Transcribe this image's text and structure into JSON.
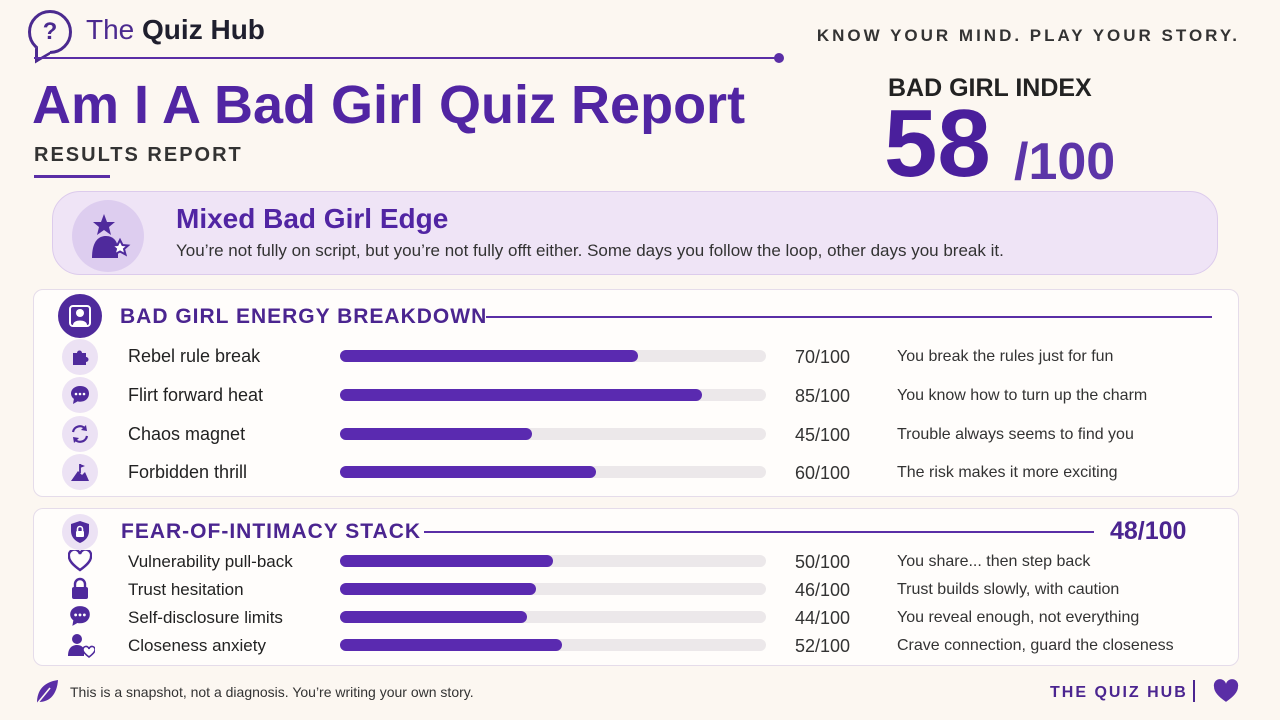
{
  "header": {
    "logo_glyph": "?",
    "brand_prefix": "The",
    "brand_name": "Quiz Hub",
    "tagline": "KNOW YOUR MIND. PLAY YOUR STORY.",
    "title": "Am I A Bad Girl Quiz Report",
    "subtitle": "RESULTS REPORT"
  },
  "index": {
    "label": "BAD GIRL INDEX",
    "value": "58",
    "max": "/100"
  },
  "banner": {
    "icon": "star-person-icon",
    "title": "Mixed Bad Girl Edge",
    "text": "You’re not fully on script, but you’re not fully offt either. Some days you follow the loop, other days you break it."
  },
  "breakdown": {
    "title": "BAD GIRL ENERGY BREAKDOWN",
    "icon": "person-icon",
    "items": [
      {
        "label": "Rebel rule break",
        "value": 70,
        "score": "70/100",
        "desc": "You break the rules just for fun",
        "icon": "puzzle-icon"
      },
      {
        "label": "Flirt forward heat",
        "value": 85,
        "score": "85/100",
        "desc": "You know how to turn up the charm",
        "icon": "chat-icon"
      },
      {
        "label": "Chaos magnet",
        "value": 45,
        "score": "45/100",
        "desc": "Trouble always seems to find you",
        "icon": "refresh-icon"
      },
      {
        "label": "Forbidden thrill",
        "value": 60,
        "score": "60/100",
        "desc": "The risk makes it more exciting",
        "icon": "summit-flag-icon"
      }
    ]
  },
  "intimacy": {
    "title": "FEAR-OF-INTIMACY STACK",
    "score": "48/100",
    "icon": "shield-lock-icon",
    "items": [
      {
        "label": "Vulnerability pull-back",
        "value": 50,
        "score": "50/100",
        "desc": "You share... then step back",
        "icon": "heart-icon"
      },
      {
        "label": "Trust hesitation",
        "value": 46,
        "score": "46/100",
        "desc": "Trust builds slowly, with caution",
        "icon": "lock-icon"
      },
      {
        "label": "Self-disclosure limits",
        "value": 44,
        "score": "44/100",
        "desc": "You reveal enough, not everything",
        "icon": "chat-icon"
      },
      {
        "label": "Closeness anxiety",
        "value": 52,
        "score": "52/100",
        "desc": "Crave connection, guard the closeness",
        "icon": "person-heart-icon"
      }
    ]
  },
  "footer": {
    "text": "This is a snapshot, not a diagnosis. You’re writing your own story.",
    "brand": "THE QUIZ HUB",
    "icon": "leaf-icon",
    "heart_icon": "heart-icon"
  },
  "colors": {
    "accent": "#5125a3",
    "bar_fill": "#5a2ab0",
    "bar_track": "#ece8ea",
    "background": "#fcf7f1",
    "banner_bg": "#efe4f6"
  }
}
